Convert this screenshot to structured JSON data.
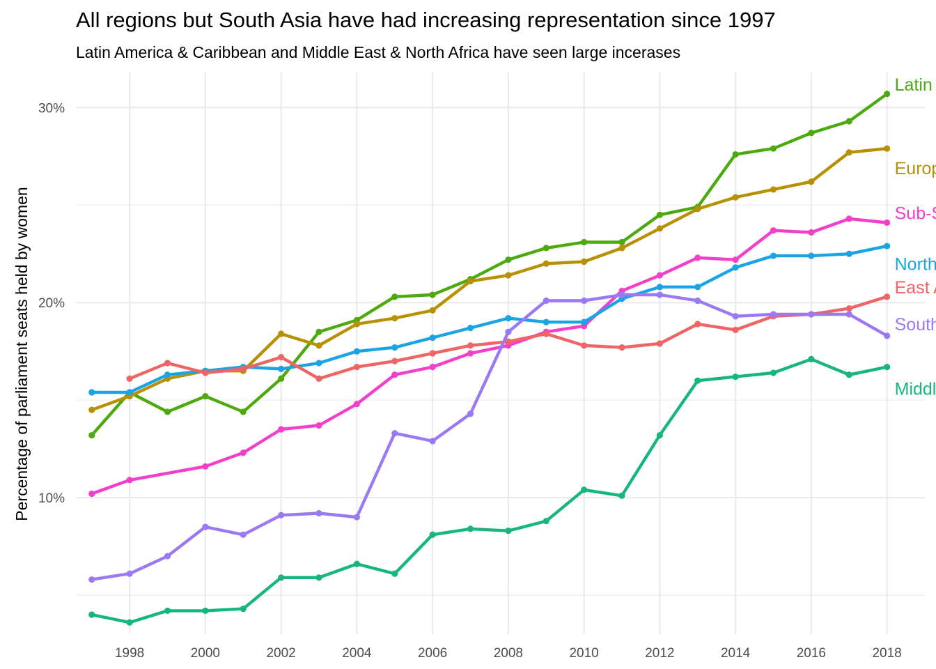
{
  "chart_data": {
    "type": "line",
    "title": "All regions but South Asia have had increasing representation since 1997",
    "subtitle": "Latin America & Caribbean and Middle East & North Africa have seen large incerases",
    "xlabel": "",
    "ylabel": "Percentage of parliament seats held by women",
    "xlim": [
      1996.6,
      2019.0
    ],
    "ylim": [
      3.0,
      31.8
    ],
    "x_ticks": [
      1998,
      2000,
      2002,
      2004,
      2006,
      2008,
      2010,
      2012,
      2014,
      2016,
      2018
    ],
    "x_tick_labels": [
      "1998",
      "2000",
      "2002",
      "2004",
      "2006",
      "2008",
      "2010",
      "2012",
      "2014",
      "2016",
      "2018"
    ],
    "y_ticks": [
      10,
      20,
      30
    ],
    "y_tick_labels": [
      "10%",
      "20%",
      "30%"
    ],
    "y_minor_ticks": [
      5,
      15,
      25
    ],
    "grid": true,
    "legend": "direct labels at line ends",
    "series": [
      {
        "name": "Latin America & Caribbean",
        "color": "#4daa0e",
        "x": [
          1997,
          1998,
          1999,
          2000,
          2001,
          2002,
          2003,
          2004,
          2005,
          2006,
          2007,
          2008,
          2009,
          2010,
          2011,
          2012,
          2013,
          2014,
          2015,
          2016,
          2017,
          2018
        ],
        "values": [
          13.2,
          15.4,
          14.4,
          15.2,
          14.4,
          16.1,
          18.5,
          19.1,
          20.3,
          20.4,
          21.2,
          22.2,
          22.8,
          23.1,
          23.1,
          24.5,
          24.9,
          27.6,
          27.9,
          28.7,
          29.3,
          30.7
        ]
      },
      {
        "name": "Europe & Central Asia",
        "color": "#b79103",
        "x": [
          1997,
          1998,
          1999,
          2000,
          2001,
          2002,
          2003,
          2004,
          2005,
          2006,
          2007,
          2008,
          2009,
          2010,
          2011,
          2012,
          2013,
          2014,
          2015,
          2016,
          2017,
          2018
        ],
        "values": [
          14.5,
          15.2,
          16.1,
          16.5,
          16.5,
          18.4,
          17.8,
          18.9,
          19.2,
          19.6,
          21.1,
          21.4,
          22.0,
          22.1,
          22.8,
          23.8,
          24.8,
          25.4,
          25.8,
          26.2,
          27.7,
          27.9
        ]
      },
      {
        "name": "Sub-Saharan Africa",
        "color": "#f33fca",
        "x": [
          1997,
          1998,
          2000,
          2001,
          2002,
          2003,
          2004,
          2005,
          2006,
          2007,
          2008,
          2009,
          2010,
          2011,
          2012,
          2013,
          2014,
          2015,
          2016,
          2017,
          2018
        ],
        "values": [
          10.2,
          10.9,
          11.6,
          12.3,
          13.5,
          13.7,
          14.8,
          16.3,
          16.7,
          17.4,
          17.8,
          18.5,
          18.8,
          20.6,
          21.4,
          22.3,
          22.2,
          23.7,
          23.6,
          24.3,
          24.1
        ]
      },
      {
        "name": "North America",
        "color": "#1ba4e3",
        "x": [
          1997,
          1998,
          1999,
          2000,
          2001,
          2002,
          2003,
          2004,
          2005,
          2006,
          2007,
          2008,
          2009,
          2010,
          2011,
          2012,
          2013,
          2014,
          2015,
          2016,
          2017,
          2018
        ],
        "values": [
          15.4,
          15.4,
          16.3,
          16.5,
          16.7,
          16.6,
          16.9,
          17.5,
          17.7,
          18.2,
          18.7,
          19.2,
          19.0,
          19.0,
          20.2,
          20.8,
          20.8,
          21.8,
          22.4,
          22.4,
          22.5,
          22.9
        ]
      },
      {
        "name": "East Asia & Pacific",
        "color": "#ef6464",
        "x": [
          1998,
          1999,
          2000,
          2001,
          2002,
          2003,
          2004,
          2005,
          2006,
          2007,
          2008,
          2009,
          2010,
          2011,
          2012,
          2013,
          2014,
          2015,
          2016,
          2017,
          2018
        ],
        "values": [
          16.1,
          16.9,
          16.4,
          16.6,
          17.2,
          16.1,
          16.7,
          17.0,
          17.4,
          17.8,
          18.0,
          18.4,
          17.8,
          17.7,
          17.9,
          18.9,
          18.6,
          19.3,
          19.4,
          19.7,
          20.3
        ]
      },
      {
        "name": "South Asia",
        "color": "#9b79f4",
        "x": [
          1997,
          1998,
          1999,
          2000,
          2001,
          2002,
          2003,
          2004,
          2005,
          2006,
          2007,
          2008,
          2009,
          2010,
          2011,
          2012,
          2013,
          2014,
          2015,
          2016,
          2017,
          2018
        ],
        "values": [
          5.8,
          6.1,
          7.0,
          8.5,
          8.1,
          9.1,
          9.2,
          9.0,
          13.3,
          12.9,
          14.3,
          18.5,
          20.1,
          20.1,
          20.4,
          20.4,
          20.1,
          19.3,
          19.4,
          19.4,
          19.4,
          18.3
        ]
      },
      {
        "name": "Middle East & North Africa",
        "color": "#17b67e",
        "x": [
          1997,
          1998,
          1999,
          2000,
          2001,
          2002,
          2003,
          2004,
          2005,
          2006,
          2007,
          2008,
          2009,
          2010,
          2011,
          2012,
          2013,
          2014,
          2015,
          2016,
          2017,
          2018
        ],
        "values": [
          4.0,
          3.6,
          4.2,
          4.2,
          4.3,
          5.9,
          5.9,
          6.6,
          6.1,
          8.1,
          8.4,
          8.3,
          8.8,
          10.4,
          10.1,
          13.2,
          16.0,
          16.2,
          16.4,
          17.1,
          16.3,
          16.7
        ]
      }
    ],
    "labels": [
      {
        "text": "Latin America & Caribbean",
        "series": "Latin America & Caribbean",
        "color": "#4daa0e",
        "value": 31.2
      },
      {
        "text": "Europe & Central Asia",
        "series": "Europe & Central Asia",
        "color": "#b79103",
        "value": 26.9
      },
      {
        "text": "Sub-Saharan Africa",
        "series": "Sub-Saharan Africa",
        "color": "#f33fca",
        "value": 24.6
      },
      {
        "text": "North America",
        "series": "North America",
        "color": "#1ba4e3",
        "value": 22.0
      },
      {
        "text": "East Asia & Pacific",
        "series": "East Asia & Pacific",
        "color": "#ef6464",
        "value": 20.8
      },
      {
        "text": "South Asia",
        "series": "South Asia",
        "color": "#9b79f4",
        "value": 18.9
      },
      {
        "text": "Middle East & North Africa",
        "series": "Middle East & North Africa",
        "color": "#17b67e",
        "value": 15.6
      }
    ]
  }
}
